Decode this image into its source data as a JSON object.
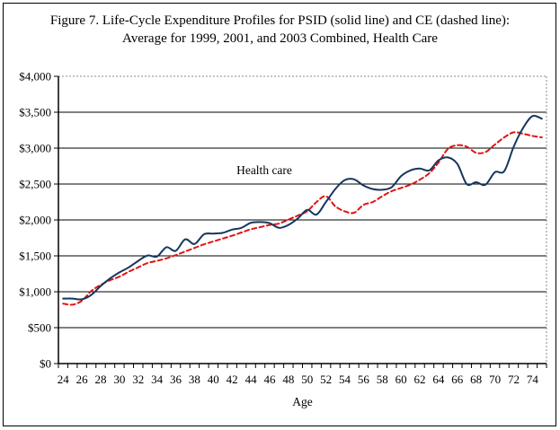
{
  "figure": {
    "title_line1": "Figure 7. Life-Cycle Expenditure Profiles for PSID (solid line) and CE (dashed line):",
    "title_line2": "Average for 1999, 2001, and 2003 Combined, Health Care",
    "annotation": "Health care",
    "x_axis_title": "Age"
  },
  "colors": {
    "psid_line": "#16365D",
    "ce_line": "#E01414",
    "grid": "#000000",
    "dotted_frame": "#888888"
  },
  "chart_data": {
    "type": "line",
    "title": "Figure 7. Life-Cycle Expenditure Profiles for PSID (solid line) and CE (dashed line): Average for 1999, 2001, and 2003 Combined, Health Care",
    "xlabel": "Age",
    "ylabel": "",
    "xlim": [
      24,
      75
    ],
    "ylim": [
      0,
      4000
    ],
    "grid": "horizontal",
    "legend_position": "none",
    "x": [
      24,
      25,
      26,
      27,
      28,
      29,
      30,
      31,
      32,
      33,
      34,
      35,
      36,
      37,
      38,
      39,
      40,
      41,
      42,
      43,
      44,
      45,
      46,
      47,
      48,
      49,
      50,
      51,
      52,
      53,
      54,
      55,
      56,
      57,
      58,
      59,
      60,
      61,
      62,
      63,
      64,
      65,
      66,
      67,
      68,
      69,
      70,
      71,
      72,
      73,
      74,
      75
    ],
    "x_tick_labels": [
      "24",
      "26",
      "28",
      "30",
      "32",
      "34",
      "36",
      "38",
      "40",
      "42",
      "44",
      "46",
      "48",
      "50",
      "52",
      "54",
      "56",
      "58",
      "60",
      "62",
      "64",
      "66",
      "68",
      "70",
      "72",
      "74"
    ],
    "y_tick_values": [
      0,
      500,
      1000,
      1500,
      2000,
      2500,
      3000,
      3500,
      4000
    ],
    "y_tick_labels": [
      "$0",
      "$500",
      "$1,000",
      "$1,500",
      "$2,000",
      "$2,500",
      "$3,000",
      "$3,500",
      "$4,000"
    ],
    "series": [
      {
        "name": "PSID",
        "style": "solid",
        "color": "#16365D",
        "values": [
          905,
          905,
          895,
          955,
          1080,
          1185,
          1270,
          1340,
          1430,
          1505,
          1490,
          1620,
          1570,
          1730,
          1665,
          1800,
          1810,
          1820,
          1865,
          1890,
          1960,
          1970,
          1955,
          1890,
          1930,
          2020,
          2140,
          2075,
          2250,
          2430,
          2555,
          2565,
          2480,
          2430,
          2420,
          2455,
          2610,
          2690,
          2715,
          2690,
          2830,
          2870,
          2780,
          2500,
          2525,
          2490,
          2665,
          2680,
          3020,
          3280,
          3445,
          3410
        ]
      },
      {
        "name": "CE",
        "style": "dashed",
        "color": "#E01414",
        "values": [
          835,
          820,
          875,
          1010,
          1095,
          1160,
          1210,
          1280,
          1340,
          1400,
          1430,
          1465,
          1510,
          1560,
          1610,
          1660,
          1700,
          1740,
          1780,
          1825,
          1870,
          1900,
          1930,
          1950,
          2005,
          2060,
          2120,
          2250,
          2330,
          2190,
          2120,
          2100,
          2210,
          2250,
          2330,
          2400,
          2445,
          2490,
          2560,
          2650,
          2800,
          2990,
          3040,
          3020,
          2935,
          2945,
          3050,
          3150,
          3220,
          3200,
          3170,
          3150
        ]
      }
    ]
  }
}
